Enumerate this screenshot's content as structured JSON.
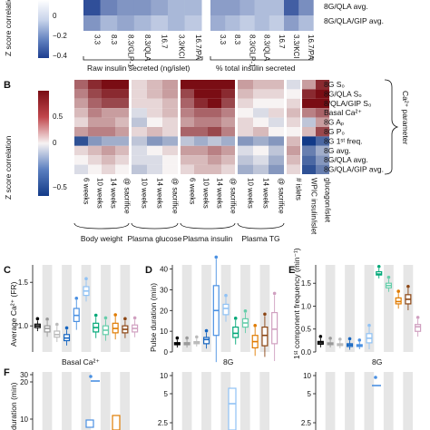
{
  "panelA": {
    "colorbar_ticks": [
      "0",
      "−0.2",
      "−0.4"
    ],
    "colorbar_label": "Z score correlation",
    "x_ticks_left": [
      "3.3",
      "8.3",
      "8.3/GLP-1",
      "8.3/QLA",
      "16.7",
      "3.3/KCl",
      "16.7/PA"
    ],
    "x_ticks_right": [
      "3.3",
      "8.3",
      "8.3/GLP-1",
      "8.3/QLA",
      "16.7",
      "3.3/KCl",
      "16.7/PA"
    ],
    "group_left": "Raw insulin secreted (ng/islet)",
    "group_right": "% total insulin secreted",
    "row_labels": [
      "8G/QLA avg.",
      "8G/QLA/GIP avg."
    ]
  },
  "panelB": {
    "letter": "B",
    "colorbar_ticks": [
      "0.5",
      "0",
      "−0.5"
    ],
    "colorbar_label": "Z score correlation",
    "row_labels": [
      "8G S₀",
      "8G/QLA S₀",
      "8/QLA/GIP S₀",
      "Basal Ca²⁺",
      "8G Aₚ",
      "8G P₀",
      "8G 1ˢᵗ freq.",
      "8G avg.",
      "8G/QLA avg.",
      "8G/QLA/GIP avg."
    ],
    "bracket_label": "Ca²⁺ parameter",
    "x_ticks": [
      "6 weeks",
      "10 weeks",
      "14 weeks",
      "@ sacrifice",
      "10 weeks",
      "14 weeks",
      "@ sacrifice",
      "6 weeks",
      "10 weeks",
      "14 weeks",
      "@ sacrifice",
      "10 weeks",
      "14 weeks",
      "@ sacrifice",
      "# islets",
      "WPIC insulin/islet",
      "glucagon/islet"
    ],
    "groups": [
      "Body weight",
      "Plasma glucose",
      "Plasma insulin",
      "Plasma TG"
    ],
    "cells": [
      [
        0.5,
        0.7,
        0.8,
        0.8,
        0.1,
        0.2,
        0.3,
        0.8,
        0.9,
        0.9,
        0.8,
        0.3,
        0.2,
        0.2,
        -0.1,
        0.3,
        0.7
      ],
      [
        0.4,
        0.6,
        0.7,
        0.7,
        0.1,
        0.2,
        0.3,
        0.6,
        0.8,
        0.8,
        0.7,
        0.2,
        0.1,
        0.1,
        0.0,
        0.7,
        0.8
      ],
      [
        0.3,
        0.5,
        0.6,
        0.6,
        0.1,
        0.1,
        0.2,
        0.5,
        0.7,
        0.8,
        0.6,
        0.1,
        0.0,
        0.0,
        0.1,
        0.8,
        0.9
      ],
      [
        0.2,
        0.4,
        0.3,
        0.3,
        -0.1,
        0.1,
        0.2,
        0.4,
        0.5,
        0.5,
        0.4,
        0.0,
        -0.1,
        0.1,
        0.2,
        0.4,
        0.5
      ],
      [
        0.1,
        0.3,
        0.3,
        0.2,
        -0.2,
        0.0,
        0.1,
        0.3,
        0.4,
        0.4,
        0.3,
        0.1,
        0.0,
        -0.1,
        0.1,
        -0.2,
        0.3
      ],
      [
        0.3,
        0.4,
        0.4,
        0.3,
        0.1,
        0.2,
        0.1,
        0.5,
        0.5,
        0.6,
        0.4,
        0.1,
        0.2,
        0.0,
        0.0,
        0.2,
        0.6
      ],
      [
        -0.7,
        -0.4,
        -0.3,
        -0.3,
        -0.2,
        -0.4,
        -0.3,
        -0.2,
        -0.3,
        -0.2,
        -0.3,
        -0.4,
        -0.3,
        -0.4,
        0.2,
        -0.8,
        -0.6
      ],
      [
        0.1,
        0.2,
        0.3,
        0.2,
        -0.1,
        0.0,
        0.1,
        0.3,
        0.3,
        0.4,
        0.3,
        -0.1,
        0.0,
        -0.2,
        0.3,
        -0.5,
        -0.3
      ],
      [
        0.0,
        0.1,
        0.2,
        0.1,
        -0.1,
        -0.1,
        0.0,
        0.2,
        0.2,
        0.3,
        0.2,
        -0.2,
        -0.1,
        -0.3,
        0.2,
        -0.6,
        -0.4
      ],
      [
        -0.1,
        0.0,
        0.1,
        0.0,
        -0.2,
        -0.1,
        0.0,
        0.1,
        0.2,
        0.2,
        0.1,
        -0.3,
        -0.2,
        -0.4,
        0.1,
        -0.7,
        -0.5
      ]
    ]
  },
  "panelC": {
    "letter": "C",
    "ylabel": "Average Ca²⁺ (FR)",
    "y_ticks": [
      "1.5",
      "1.0"
    ],
    "xlabel": "Basal Ca²⁺"
  },
  "panelD": {
    "letter": "D",
    "ylabel": "Pulse duration (min)",
    "y_ticks": [
      "40",
      "30",
      "20",
      "10",
      "0"
    ],
    "xlabel": "8G"
  },
  "panelE": {
    "letter": "E",
    "ylabel": "1ˢᵗ component frequency (min⁻¹)",
    "y_ticks": [
      "1.5",
      "1.0",
      "0.5",
      "0.0"
    ],
    "xlabel": "8G"
  },
  "panelF": {
    "letter": "F",
    "ylabel": "duration (min)",
    "y_ticks_1": [
      "30",
      "20",
      "10"
    ],
    "y_ticks_2": [
      "10",
      "5",
      "2.5"
    ],
    "y_ticks_3": [
      "10",
      "5",
      "2.5"
    ]
  },
  "chart_data": [
    {
      "type": "heatmap",
      "title": "",
      "rows": [
        "8G S₀",
        "8G/QLA S₀",
        "8/QLA/GIP S₀",
        "Basal Ca²⁺",
        "8G Aₚ",
        "8G P₀",
        "8G 1ˢᵗ freq.",
        "8G avg.",
        "8G/QLA avg.",
        "8G/QLA/GIP avg."
      ],
      "columns": [
        "6 weeks",
        "10 weeks",
        "14 weeks",
        "@ sacrifice",
        "10 weeks",
        "14 weeks",
        "@ sacrifice",
        "6 weeks",
        "10 weeks",
        "14 weeks",
        "@ sacrifice",
        "10 weeks",
        "14 weeks",
        "@ sacrifice",
        "# islets",
        "WPIC insulin/islet",
        "glucagon/islet"
      ],
      "value_range": [
        -0.8,
        0.8
      ]
    },
    {
      "type": "scatter",
      "title": "",
      "xlabel": "Basal Ca²⁺",
      "ylabel": "Average Ca²⁺ (FR)",
      "ylim": [
        0.7,
        1.7
      ],
      "groups": [
        {
          "color": "#000000",
          "median": 1.0,
          "q1": 0.98,
          "q3": 1.02
        },
        {
          "color": "#999999",
          "median": 0.97,
          "q1": 0.93,
          "q3": 1.0
        },
        {
          "color": "#bbbbbb",
          "median": 0.9,
          "q1": 0.87,
          "q3": 0.94
        },
        {
          "color": "#1565c0",
          "median": 0.86,
          "q1": 0.83,
          "q3": 0.9
        },
        {
          "color": "#4a90e2",
          "median": 1.12,
          "q1": 1.05,
          "q3": 1.2
        },
        {
          "color": "#90c2f5",
          "median": 1.4,
          "q1": 1.35,
          "q3": 1.45
        },
        {
          "color": "#00a878",
          "median": 0.98,
          "q1": 0.93,
          "q3": 1.03
        },
        {
          "color": "#66cdaa",
          "median": 0.95,
          "q1": 0.9,
          "q3": 1.0
        },
        {
          "color": "#e07b00",
          "median": 0.97,
          "q1": 0.92,
          "q3": 1.03
        },
        {
          "color": "#8b4513",
          "median": 0.96,
          "q1": 0.92,
          "q3": 1.0
        },
        {
          "color": "#d0a0c0",
          "median": 0.97,
          "q1": 0.93,
          "q3": 1.01
        }
      ]
    },
    {
      "type": "scatter",
      "title": "",
      "xlabel": "8G",
      "ylabel": "Pulse duration (min)",
      "ylim": [
        0,
        40
      ],
      "groups": [
        {
          "color": "#000000",
          "median": 4,
          "q1": 3.5,
          "q3": 4.5
        },
        {
          "color": "#999999",
          "median": 4,
          "q1": 3.5,
          "q3": 4.5
        },
        {
          "color": "#bbbbbb",
          "median": 4.5,
          "q1": 4,
          "q3": 5
        },
        {
          "color": "#1565c0",
          "median": 6,
          "q1": 4,
          "q3": 7
        },
        {
          "color": "#4a90e2",
          "median": 20,
          "q1": 8,
          "q3": 32
        },
        {
          "color": "#90c2f5",
          "median": 21,
          "q1": 18,
          "q3": 23
        },
        {
          "color": "#00a878",
          "median": 9,
          "q1": 7,
          "q3": 12
        },
        {
          "color": "#66cdaa",
          "median": 14,
          "q1": 12,
          "q3": 16
        },
        {
          "color": "#e07b00",
          "median": 5,
          "q1": 2,
          "q3": 8
        },
        {
          "color": "#8b4513",
          "median": 8,
          "q1": 3,
          "q3": 12
        },
        {
          "color": "#d0a0c0",
          "median": 11,
          "q1": 4,
          "q3": 19
        }
      ]
    },
    {
      "type": "scatter",
      "title": "",
      "xlabel": "8G",
      "ylabel": "1ˢᵗ component frequency (min⁻¹)",
      "ylim": [
        0,
        1.9
      ],
      "groups": [
        {
          "color": "#000000",
          "median": 0.2,
          "q1": 0.17,
          "q3": 0.23
        },
        {
          "color": "#999999",
          "median": 0.18,
          "q1": 0.16,
          "q3": 0.2
        },
        {
          "color": "#bbbbbb",
          "median": 0.16,
          "q1": 0.14,
          "q3": 0.18
        },
        {
          "color": "#1565c0",
          "median": 0.15,
          "q1": 0.12,
          "q3": 0.18
        },
        {
          "color": "#4a90e2",
          "median": 0.14,
          "q1": 0.12,
          "q3": 0.16
        },
        {
          "color": "#90c2f5",
          "median": 0.3,
          "q1": 0.2,
          "q3": 0.4
        },
        {
          "color": "#00a878",
          "median": 1.7,
          "q1": 1.68,
          "q3": 1.75
        },
        {
          "color": "#66cdaa",
          "median": 1.45,
          "q1": 1.4,
          "q3": 1.5
        },
        {
          "color": "#e07b00",
          "median": 1.1,
          "q1": 1.05,
          "q3": 1.18
        },
        {
          "color": "#8b4513",
          "median": 1.15,
          "q1": 1.05,
          "q3": 1.25
        },
        {
          "color": "#d0a0c0",
          "median": 0.55,
          "q1": 0.45,
          "q3": 0.6
        }
      ]
    }
  ]
}
